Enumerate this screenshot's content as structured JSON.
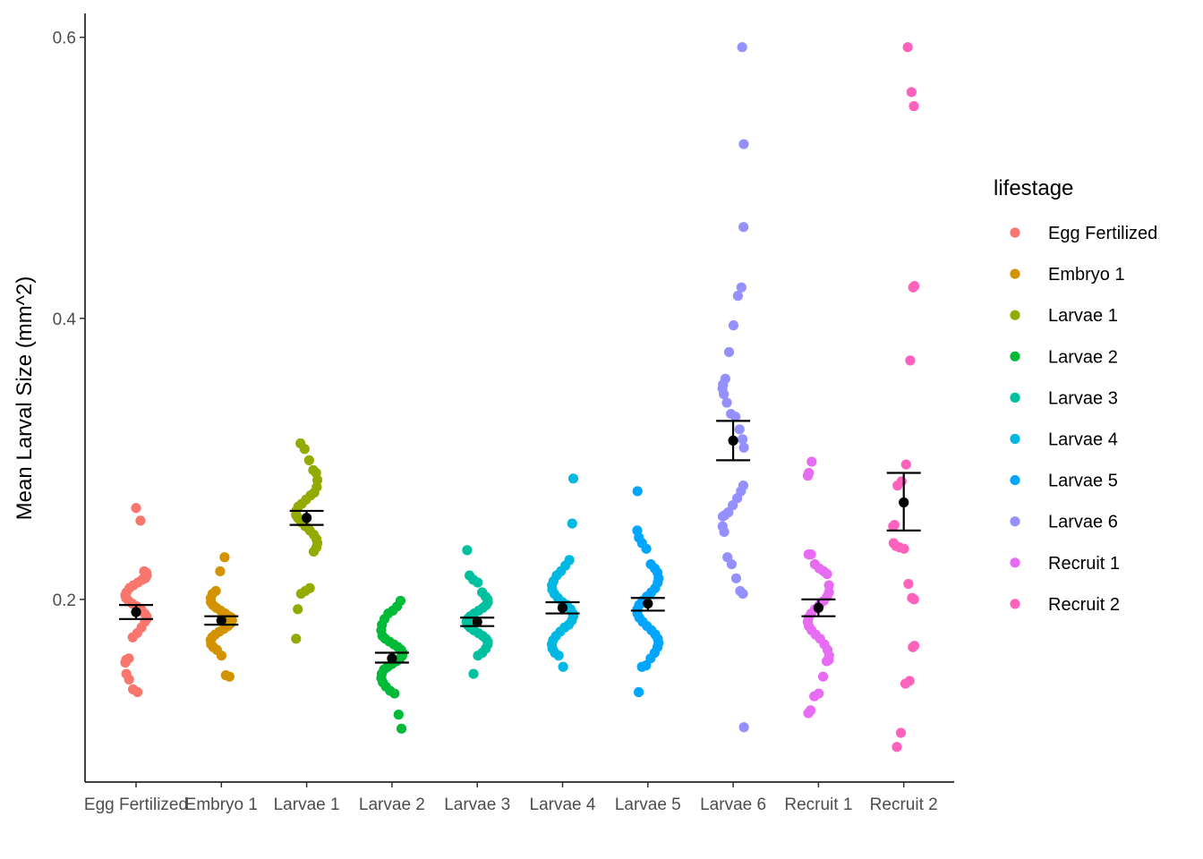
{
  "chart_data": {
    "type": "scatter",
    "title": "",
    "xlabel": "",
    "ylabel": "Mean Larval Size (mm^2)",
    "ylim": [
      0.07,
      0.617
    ],
    "yticks": [
      {
        "value": 0.2,
        "label": "0.2"
      },
      {
        "value": 0.4,
        "label": "0.4"
      },
      {
        "value": 0.6,
        "label": "0.6"
      }
    ],
    "grid": false,
    "legend": {
      "title": "lifestage",
      "position": "right"
    },
    "summary_color": "#000000",
    "series": [
      {
        "name": "Egg Fertilized",
        "color": "#F8766D",
        "mean": 0.191,
        "se_low": 0.186,
        "se_high": 0.196,
        "points": [
          0.265,
          0.256,
          0.22,
          0.219,
          0.217,
          0.215,
          0.214,
          0.212,
          0.21,
          0.208,
          0.205,
          0.203,
          0.201,
          0.199,
          0.197,
          0.195,
          0.193,
          0.19,
          0.188,
          0.186,
          0.184,
          0.18,
          0.176,
          0.173,
          0.158,
          0.157,
          0.155,
          0.147,
          0.143,
          0.136,
          0.134
        ]
      },
      {
        "name": "Embryo 1",
        "color": "#D39200",
        "mean": 0.185,
        "se_low": 0.182,
        "se_high": 0.188,
        "points": [
          0.23,
          0.22,
          0.206,
          0.204,
          0.201,
          0.198,
          0.196,
          0.194,
          0.192,
          0.19,
          0.188,
          0.187,
          0.185,
          0.183,
          0.181,
          0.179,
          0.177,
          0.175,
          0.173,
          0.171,
          0.168,
          0.166,
          0.164,
          0.16,
          0.146,
          0.145
        ]
      },
      {
        "name": "Larvae 1",
        "color": "#93AA00",
        "mean": 0.258,
        "se_low": 0.253,
        "se_high": 0.263,
        "points": [
          0.311,
          0.307,
          0.299,
          0.292,
          0.29,
          0.285,
          0.28,
          0.276,
          0.274,
          0.271,
          0.268,
          0.266,
          0.263,
          0.26,
          0.258,
          0.255,
          0.252,
          0.249,
          0.246,
          0.243,
          0.24,
          0.237,
          0.234,
          0.208,
          0.206,
          0.204,
          0.193,
          0.172
        ]
      },
      {
        "name": "Larvae 2",
        "color": "#00BA38",
        "mean": 0.158,
        "se_low": 0.155,
        "se_high": 0.162,
        "points": [
          0.199,
          0.195,
          0.192,
          0.19,
          0.186,
          0.182,
          0.178,
          0.174,
          0.172,
          0.17,
          0.168,
          0.166,
          0.164,
          0.162,
          0.16,
          0.158,
          0.156,
          0.154,
          0.152,
          0.15,
          0.147,
          0.144,
          0.141,
          0.138,
          0.135,
          0.133,
          0.118,
          0.108
        ]
      },
      {
        "name": "Larvae 3",
        "color": "#00C19F",
        "mean": 0.184,
        "se_low": 0.181,
        "se_high": 0.187,
        "points": [
          0.235,
          0.217,
          0.214,
          0.212,
          0.205,
          0.202,
          0.2,
          0.198,
          0.196,
          0.194,
          0.192,
          0.19,
          0.188,
          0.186,
          0.184,
          0.182,
          0.18,
          0.178,
          0.176,
          0.174,
          0.172,
          0.17,
          0.168,
          0.165,
          0.162,
          0.16,
          0.147
        ]
      },
      {
        "name": "Larvae 4",
        "color": "#00B9E3",
        "mean": 0.194,
        "se_low": 0.19,
        "se_high": 0.198,
        "points": [
          0.286,
          0.254,
          0.228,
          0.224,
          0.22,
          0.217,
          0.213,
          0.21,
          0.207,
          0.204,
          0.201,
          0.198,
          0.196,
          0.193,
          0.19,
          0.188,
          0.185,
          0.182,
          0.18,
          0.177,
          0.174,
          0.171,
          0.168,
          0.165,
          0.162,
          0.16,
          0.152
        ]
      },
      {
        "name": "Larvae 5",
        "color": "#00A5FF",
        "mean": 0.197,
        "se_low": 0.192,
        "se_high": 0.201,
        "points": [
          0.277,
          0.249,
          0.244,
          0.24,
          0.236,
          0.225,
          0.222,
          0.219,
          0.215,
          0.212,
          0.208,
          0.205,
          0.202,
          0.199,
          0.196,
          0.193,
          0.19,
          0.187,
          0.184,
          0.181,
          0.178,
          0.175,
          0.172,
          0.169,
          0.166,
          0.162,
          0.158,
          0.153,
          0.152,
          0.134
        ]
      },
      {
        "name": "Larvae 6",
        "color": "#9590FF",
        "mean": 0.313,
        "se_low": 0.299,
        "se_high": 0.327,
        "points": [
          0.593,
          0.524,
          0.465,
          0.422,
          0.416,
          0.395,
          0.376,
          0.357,
          0.353,
          0.35,
          0.346,
          0.34,
          0.332,
          0.33,
          0.321,
          0.314,
          0.308,
          0.281,
          0.277,
          0.272,
          0.267,
          0.262,
          0.26,
          0.259,
          0.252,
          0.248,
          0.23,
          0.225,
          0.215,
          0.206,
          0.204,
          0.109
        ]
      },
      {
        "name": "Recruit 1",
        "color": "#E76BF3",
        "mean": 0.194,
        "se_low": 0.188,
        "se_high": 0.2,
        "points": [
          0.298,
          0.29,
          0.288,
          0.232,
          0.232,
          0.225,
          0.222,
          0.22,
          0.218,
          0.21,
          0.205,
          0.202,
          0.199,
          0.196,
          0.193,
          0.19,
          0.187,
          0.184,
          0.181,
          0.178,
          0.175,
          0.172,
          0.168,
          0.164,
          0.16,
          0.157,
          0.156,
          0.145,
          0.133,
          0.131,
          0.121,
          0.119
        ]
      },
      {
        "name": "Recruit 2",
        "color": "#FF62BC",
        "mean": 0.269,
        "se_low": 0.249,
        "se_high": 0.29,
        "points": [
          0.593,
          0.561,
          0.551,
          0.423,
          0.422,
          0.37,
          0.296,
          0.284,
          0.281,
          0.253,
          0.252,
          0.24,
          0.238,
          0.237,
          0.236,
          0.211,
          0.201,
          0.2,
          0.167,
          0.166,
          0.142,
          0.14,
          0.105,
          0.095
        ]
      }
    ]
  }
}
